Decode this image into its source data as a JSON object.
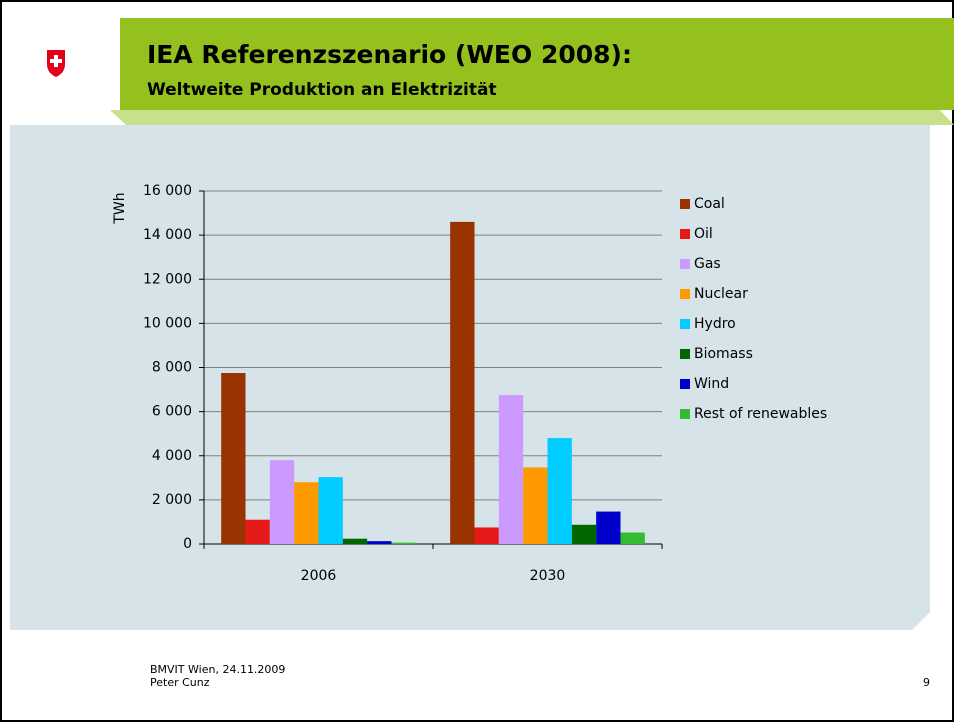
{
  "header": {
    "title": "IEA Referenzszenario (WEO 2008):",
    "subtitle": "Weltweite Produktion an Elektrizität"
  },
  "footer": {
    "line1": "BMVIT Wien, 24.11.2009",
    "line2": "Peter Cunz",
    "page": "9"
  },
  "chart_data": {
    "type": "bar",
    "y_label": "TWh",
    "categories": [
      "2006",
      "2030"
    ],
    "series": [
      {
        "name": "Coal",
        "color": "#993300",
        "values": [
          7750,
          14600
        ]
      },
      {
        "name": "Oil",
        "color": "#e61919",
        "values": [
          1100,
          750
        ]
      },
      {
        "name": "Gas",
        "color": "#cc99ff",
        "values": [
          3800,
          6750
        ]
      },
      {
        "name": "Nuclear",
        "color": "#ff9900",
        "values": [
          2800,
          3470
        ]
      },
      {
        "name": "Hydro",
        "color": "#00ccff",
        "values": [
          3030,
          4800
        ]
      },
      {
        "name": "Biomass",
        "color": "#006600",
        "values": [
          240,
          870
        ]
      },
      {
        "name": "Wind",
        "color": "#0000cc",
        "values": [
          130,
          1470
        ]
      },
      {
        "name": "Rest of renewables",
        "color": "#33bb33",
        "values": [
          60,
          520
        ]
      }
    ],
    "ylim": [
      0,
      16000
    ],
    "yticks": [
      0,
      {
        "value": 2000,
        "label": "2 000"
      },
      {
        "value": 4000,
        "label": "4 000"
      },
      {
        "value": 6000,
        "label": "6 000"
      },
      {
        "value": 8000,
        "label": "8 000"
      },
      {
        "value": 10000,
        "label": "10 000"
      },
      {
        "value": 12000,
        "label": "12 000"
      },
      {
        "value": 14000,
        "label": "14 000"
      },
      {
        "value": 16000,
        "label": "16 000"
      }
    ],
    "grid": true,
    "legend": "right"
  }
}
